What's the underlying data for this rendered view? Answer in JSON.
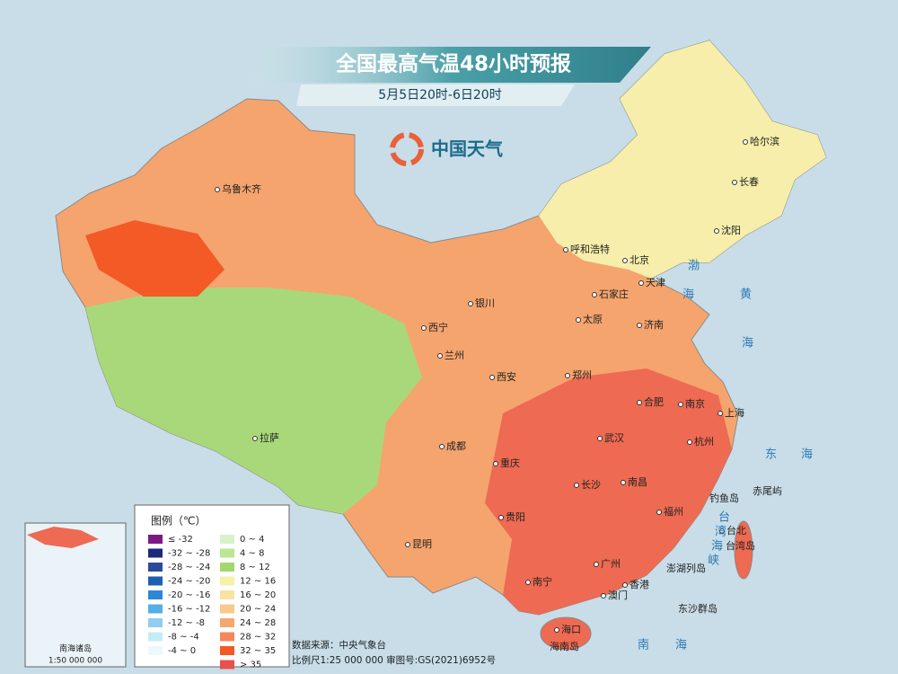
{
  "header": {
    "title": "全国最高气温48小时预报",
    "subtitle": "5月5日20时-6日20时",
    "brand": "中国天气"
  },
  "cities": [
    "乌鲁木齐",
    "哈尔滨",
    "长春",
    "沈阳",
    "呼和浩特",
    "北京",
    "天津",
    "石家庄",
    "太原",
    "济南",
    "银川",
    "西宁",
    "兰州",
    "西安",
    "郑州",
    "合肥",
    "南京",
    "上海",
    "杭州",
    "武汉",
    "成都",
    "重庆",
    "长沙",
    "南昌",
    "福州",
    "贵阳",
    "昆明",
    "南宁",
    "广州",
    "香港",
    "澳门",
    "海口",
    "台北",
    "拉萨"
  ],
  "places": [
    "钓鱼岛",
    "赤尾屿",
    "台湾岛",
    "澎湖列岛",
    "东沙群岛",
    "海南岛"
  ],
  "seas": [
    "渤",
    "海",
    "黄",
    "海",
    "东",
    "海",
    "南",
    "海",
    "台",
    "湾",
    "海",
    "峡"
  ],
  "legend": {
    "title": "图例（℃）",
    "items": [
      {
        "label": "≤ -32",
        "color": "#7b1a86"
      },
      {
        "label": "-32 ~ -28",
        "color": "#1b2a7a"
      },
      {
        "label": "-28 ~ -24",
        "color": "#2b4a9a"
      },
      {
        "label": "-24 ~ -20",
        "color": "#1f5fb0"
      },
      {
        "label": "-20 ~ -16",
        "color": "#2e86d6"
      },
      {
        "label": "-16 ~ -12",
        "color": "#55aee6"
      },
      {
        "label": "-12 ~ -8",
        "color": "#92cdee"
      },
      {
        "label": "-8 ~ -4",
        "color": "#c4ecf7"
      },
      {
        "label": "-4 ~ 0",
        "color": "#eef8fb"
      },
      {
        "label": "0 ~ 4",
        "color": "#d9f1c8"
      },
      {
        "label": "4 ~ 8",
        "color": "#bde596"
      },
      {
        "label": "8 ~ 12",
        "color": "#a3d86c"
      },
      {
        "label": "12 ~ 16",
        "color": "#f6f1a8"
      },
      {
        "label": "16 ~ 20",
        "color": "#f9e2a2"
      },
      {
        "label": "20 ~ 24",
        "color": "#f8c98c"
      },
      {
        "label": "24 ~ 28",
        "color": "#f5a86c"
      },
      {
        "label": "28 ~ 32",
        "color": "#f3885a"
      },
      {
        "label": "32 ~ 35",
        "color": "#f25a22"
      },
      {
        "label": "> 35",
        "color": "#e94f4c"
      }
    ]
  },
  "footer": {
    "source": "数据来源：中央气象台",
    "scale": "比例尺1:25 000 000  审图号:GS(2021)6952号"
  },
  "inset": {
    "title": "南海诸岛",
    "scale": "1:50 000 000"
  }
}
